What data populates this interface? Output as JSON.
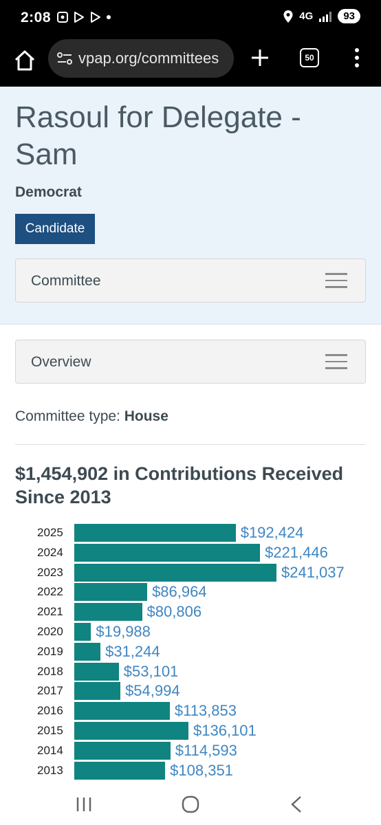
{
  "status": {
    "time": "2:08",
    "network": "4G",
    "battery": "93"
  },
  "browser": {
    "url": "vpap.org/committees",
    "tab_count": "50"
  },
  "header": {
    "title": "Rasoul for Delegate - Sam",
    "party": "Democrat",
    "candidate_label": "Candidate",
    "committee_toggle": "Committee"
  },
  "overview": {
    "toggle_label": "Overview",
    "committee_type_label": "Committee type:",
    "committee_type_value": "House",
    "contributions_title": "$1,454,902 in Contributions Received Since 2013"
  },
  "chart_data": {
    "type": "bar",
    "orientation": "horizontal",
    "categories": [
      "2025",
      "2024",
      "2023",
      "2022",
      "2021",
      "2020",
      "2019",
      "2018",
      "2017",
      "2016",
      "2015",
      "2014",
      "2013"
    ],
    "values": [
      192424,
      221446,
      241037,
      86964,
      80806,
      19988,
      31244,
      53101,
      54994,
      113853,
      136101,
      114593,
      108351
    ],
    "labels": [
      "$192,424",
      "$221,446",
      "$241,037",
      "$86,964",
      "$80,806",
      "$19,988",
      "$31,244",
      "$53,101",
      "$54,994",
      "$113,853",
      "$136,101",
      "$114,593",
      "$108,351"
    ],
    "bar_color": "#0f8480",
    "label_color": "#3f86c2"
  },
  "colors": {
    "header_bg": "#eaf2fa",
    "candidate_button": "#1d4f80"
  }
}
